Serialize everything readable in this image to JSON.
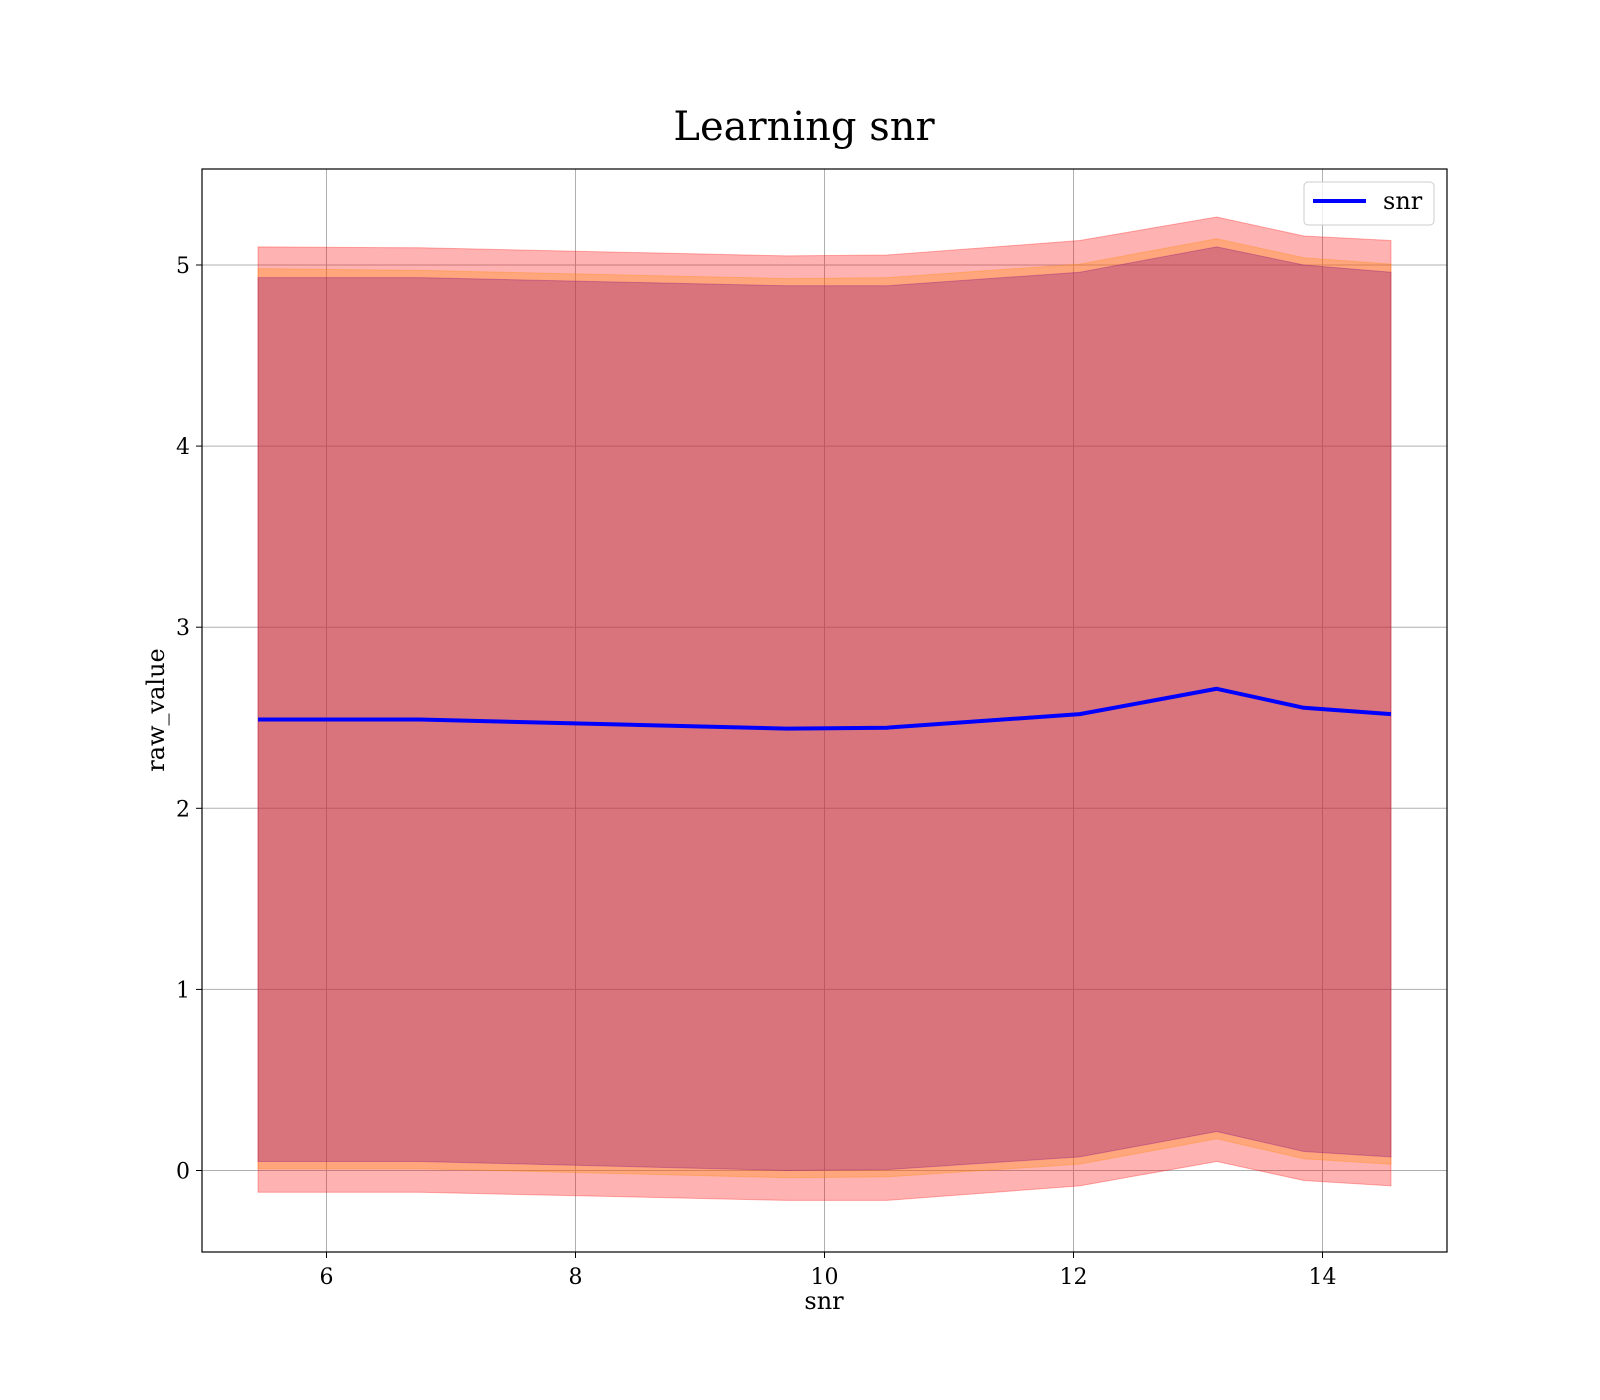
{
  "chart_data": {
    "type": "line",
    "title": "Learning snr",
    "xlabel": "snr",
    "ylabel": "raw_value",
    "xlim": [
      5.0,
      15.0
    ],
    "ylim": [
      -0.45,
      5.53
    ],
    "xticks": [
      6,
      8,
      10,
      12,
      14
    ],
    "yticks": [
      0,
      1,
      2,
      3,
      4,
      5
    ],
    "grid": true,
    "legend_position": "top-right",
    "x": [
      5.45,
      6.75,
      9.7,
      10.5,
      12.05,
      13.15,
      13.85,
      14.55
    ],
    "series": [
      {
        "name": "snr",
        "color": "#0000ff",
        "values": [
          2.49,
          2.49,
          2.44,
          2.445,
          2.52,
          2.66,
          2.555,
          2.52
        ]
      }
    ],
    "bands": [
      {
        "role": "outer",
        "color": "#ff0000",
        "lower": [
          -0.12,
          -0.12,
          -0.165,
          -0.165,
          -0.085,
          0.05,
          -0.055,
          -0.085
        ],
        "upper": [
          5.1,
          5.095,
          5.05,
          5.055,
          5.135,
          5.265,
          5.16,
          5.135
        ]
      },
      {
        "role": "middle",
        "color": "#ff8c00",
        "lower": [
          0.01,
          0.01,
          -0.04,
          -0.035,
          0.035,
          0.175,
          0.065,
          0.035
        ],
        "upper": [
          4.98,
          4.97,
          4.925,
          4.93,
          5.005,
          5.145,
          5.04,
          5.005
        ]
      },
      {
        "role": "inner",
        "color": "#800080",
        "lower": [
          0.05,
          0.05,
          0.0,
          0.005,
          0.075,
          0.215,
          0.105,
          0.075
        ],
        "upper": [
          4.93,
          4.93,
          4.885,
          4.885,
          4.96,
          5.1,
          5.0,
          4.96
        ]
      }
    ]
  }
}
